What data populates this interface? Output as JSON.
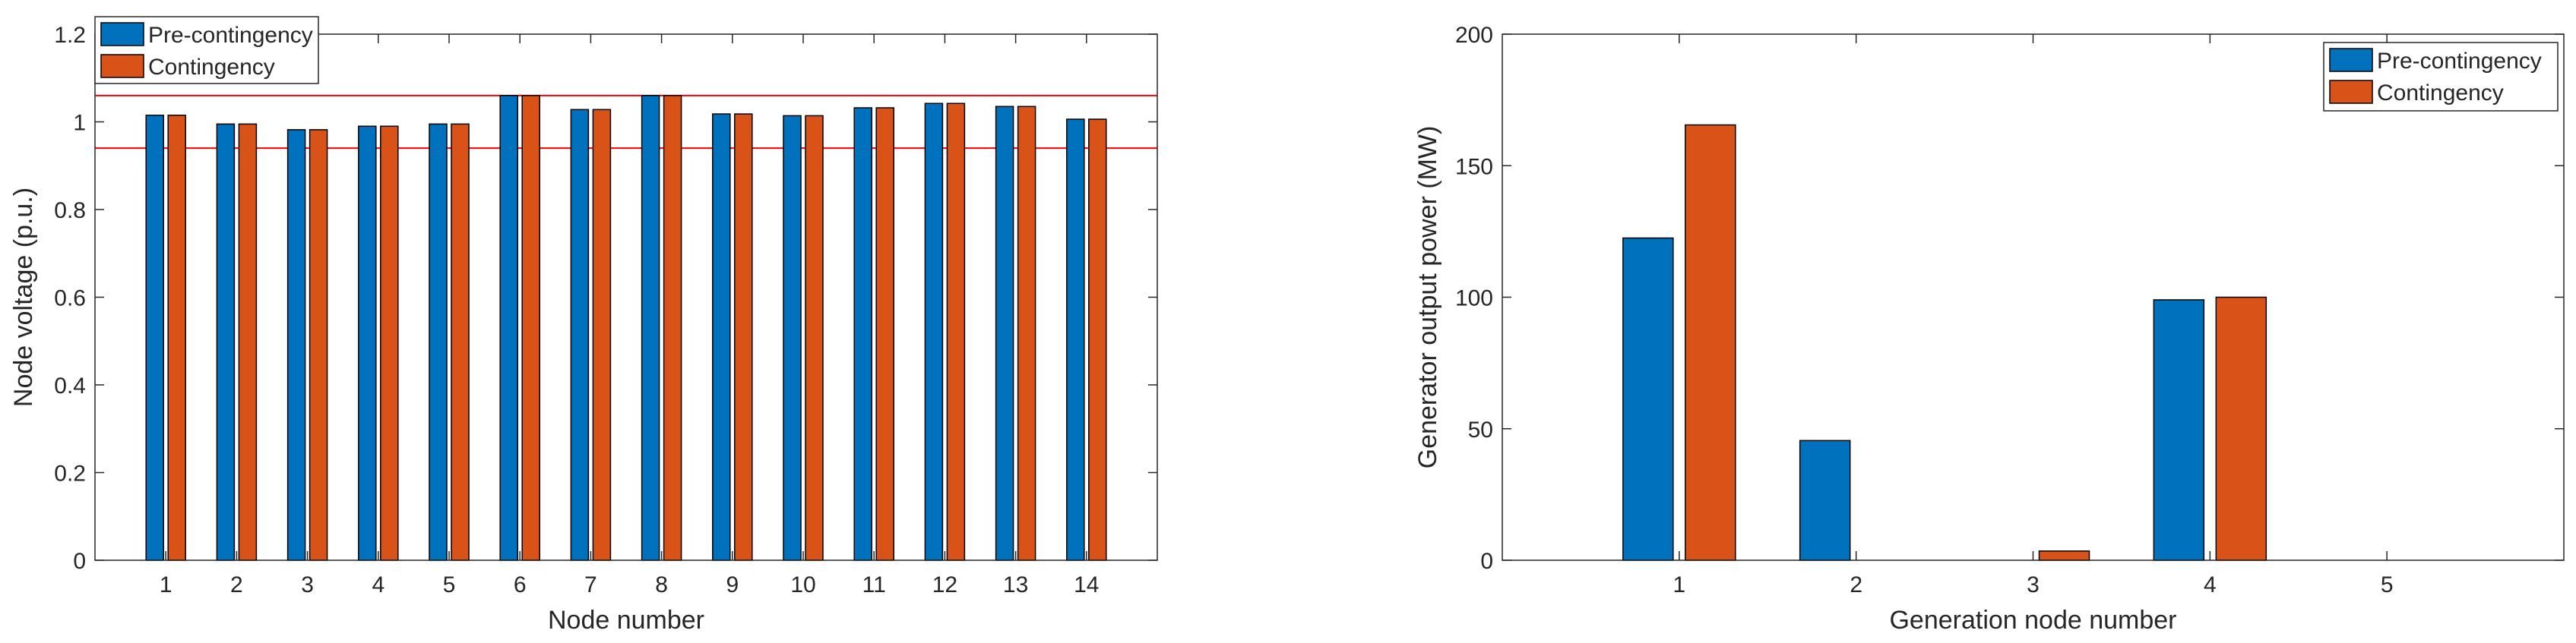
{
  "colors": {
    "pre": "#0072BD",
    "contingency": "#D95319",
    "limit": "#FF0000",
    "axis": "#262626"
  },
  "chart_data": [
    {
      "type": "bar",
      "categories": [
        "1",
        "2",
        "3",
        "4",
        "5",
        "6",
        "7",
        "8",
        "9",
        "10",
        "11",
        "12",
        "13",
        "14"
      ],
      "series": [
        {
          "name": "Pre-contingency",
          "values": [
            1.015,
            0.995,
            0.982,
            0.99,
            0.995,
            1.06,
            1.028,
            1.06,
            1.018,
            1.014,
            1.032,
            1.042,
            1.035,
            1.006
          ]
        },
        {
          "name": "Contingency",
          "values": [
            1.015,
            0.995,
            0.982,
            0.99,
            0.995,
            1.06,
            1.028,
            1.06,
            1.018,
            1.014,
            1.032,
            1.042,
            1.035,
            1.006
          ]
        }
      ],
      "reference_lines": [
        1.06,
        0.94
      ],
      "xlabel": "Node number",
      "ylabel": "Node voltage (p.u.)",
      "ylim": [
        0,
        1.2
      ],
      "yticks": [
        0,
        0.2,
        0.4,
        0.6,
        0.8,
        1,
        1.2
      ],
      "ytick_labels": [
        "0",
        "0.2",
        "0.4",
        "0.6",
        "0.8",
        "1",
        "1.2"
      ],
      "legend": {
        "position": "top-left",
        "entries": [
          "Pre-contingency",
          "Contingency"
        ]
      }
    },
    {
      "type": "bar",
      "categories": [
        "1",
        "2",
        "3",
        "4",
        "5"
      ],
      "series": [
        {
          "name": "Pre-contingency",
          "values": [
            122.5,
            45.5,
            0,
            99,
            0
          ]
        },
        {
          "name": "Contingency",
          "values": [
            165.5,
            0,
            3.5,
            100,
            0
          ]
        }
      ],
      "xlabel": "Generation node number",
      "ylabel": "Generator output power (MW)",
      "ylim": [
        0,
        200
      ],
      "yticks": [
        0,
        50,
        100,
        150,
        200
      ],
      "ytick_labels": [
        "0",
        "50",
        "100",
        "150",
        "200"
      ],
      "legend": {
        "position": "top-right",
        "entries": [
          "Pre-contingency",
          "Contingency"
        ]
      }
    }
  ]
}
